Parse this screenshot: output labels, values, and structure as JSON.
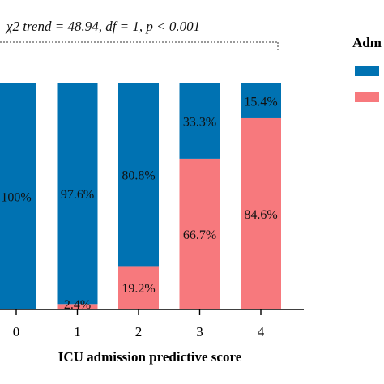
{
  "chart_data": {
    "type": "bar",
    "stacked": true,
    "percent": true,
    "annotation": "χ2 trend = 48.94, df = 1, p < 0.001",
    "xlabel": "ICU admission predictive score",
    "categories": [
      "0",
      "1",
      "2",
      "3",
      "4"
    ],
    "series": [
      {
        "color": "#0072b2",
        "values": [
          100,
          97.6,
          80.8,
          33.3,
          15.4
        ],
        "labels": [
          "100%",
          "97.6%",
          "80.8%",
          "33.3%",
          "15.4%"
        ]
      },
      {
        "color": "#f7797d",
        "values": [
          0,
          2.4,
          19.2,
          66.7,
          84.6
        ],
        "labels": [
          "",
          "2.4%",
          "19.2%",
          "66.7%",
          "84.6%"
        ]
      }
    ],
    "ylim": [
      0,
      100
    ],
    "legend": {
      "title": "Adm",
      "placement": "right"
    },
    "grid": false
  }
}
